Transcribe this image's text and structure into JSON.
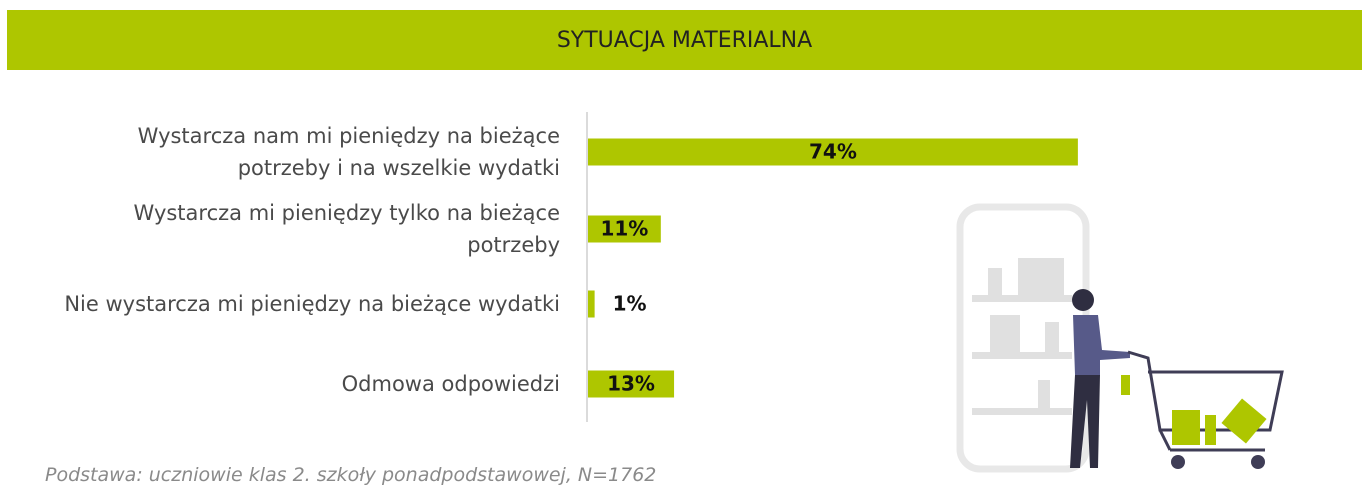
{
  "chart_data": {
    "type": "bar",
    "orientation": "horizontal",
    "title": "SYTUACJA MATERIALNA",
    "categories": [
      "Wystarcza nam mi pieniędzy na bieżące potrzeby i na wszelkie wydatki",
      "Wystarcza mi pieniędzy tylko na bieżące potrzeby",
      "Nie wystarcza mi pieniędzy na bieżące wydatki",
      "Odmowa odpowiedzi"
    ],
    "values": [
      74,
      11,
      1,
      13
    ],
    "value_labels": [
      "74%",
      "11%",
      "1%",
      "13%"
    ],
    "color": "#aec600",
    "note": "Podstawa: uczniowie klas 2. szkoły ponadpodstawowej, N=1762"
  }
}
